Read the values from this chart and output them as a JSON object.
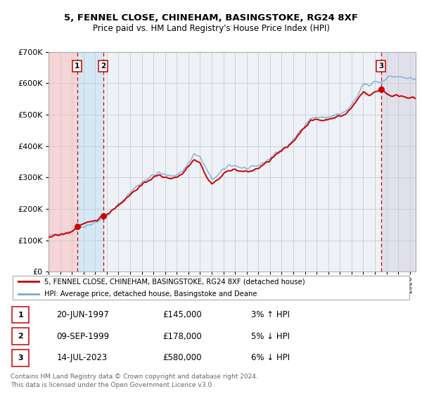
{
  "title_line1": "5, FENNEL CLOSE, CHINEHAM, BASINGSTOKE, RG24 8XF",
  "title_line2": "Price paid vs. HM Land Registry's House Price Index (HPI)",
  "red_label": "5, FENNEL CLOSE, CHINEHAM, BASINGSTOKE, RG24 8XF (detached house)",
  "blue_label": "HPI: Average price, detached house, Basingstoke and Deane",
  "transactions": [
    {
      "num": 1,
      "date": "20-JUN-1997",
      "year": 1997.47,
      "price": 145000,
      "pct": "3%",
      "dir": "↑"
    },
    {
      "num": 2,
      "date": "09-SEP-1999",
      "year": 1999.69,
      "price": 178000,
      "pct": "5%",
      "dir": "↓"
    },
    {
      "num": 3,
      "date": "14-JUL-2023",
      "year": 2023.54,
      "price": 580000,
      "pct": "6%",
      "dir": "↓"
    }
  ],
  "footer": "Contains HM Land Registry data © Crown copyright and database right 2024.\nThis data is licensed under the Open Government Licence v3.0.",
  "ylim": [
    0,
    700000
  ],
  "xlim_start": 1995.0,
  "xlim_end": 2026.5,
  "red_color": "#cc0000",
  "blue_color": "#7aadcf",
  "bg_color": "#eef2f7",
  "shade_red_color": "#f5d5d5",
  "shade_blue_color": "#d5e8f5",
  "shade_gray_color": "#e0e0ea",
  "grid_color": "#c8ccd4",
  "legend_border_color": "#aaaaaa",
  "footer_color": "#666666"
}
